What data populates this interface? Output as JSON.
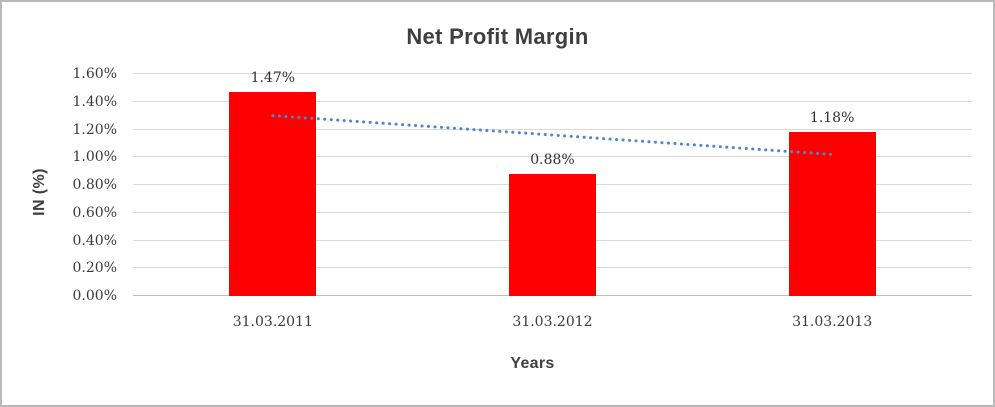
{
  "chart_data": {
    "type": "bar",
    "title": "Net Profit Margin",
    "xlabel": "Years",
    "ylabel": "IN (%)",
    "categories": [
      "31.03.2011",
      "31.03.2012",
      "31.03.2013"
    ],
    "values": [
      1.47,
      0.88,
      1.18
    ],
    "data_labels": [
      "1.47%",
      "0.88%",
      "1.18%"
    ],
    "ylim": [
      0,
      1.6
    ],
    "ytick_step": 0.2,
    "ytick_labels": [
      "0.00%",
      "0.20%",
      "0.40%",
      "0.60%",
      "0.80%",
      "1.00%",
      "1.20%",
      "1.40%",
      "1.60%"
    ],
    "grid": true,
    "legend": "none",
    "trendline": {
      "type": "linear",
      "style": "dotted",
      "start_value": 1.3,
      "end_value": 1.02
    },
    "colors": {
      "bar": "#FF0000",
      "trendline": "#4E87C9",
      "gridline": "#D9D9D9",
      "axis_line": "#BFBFBF",
      "text": "#3F3F3F"
    }
  }
}
